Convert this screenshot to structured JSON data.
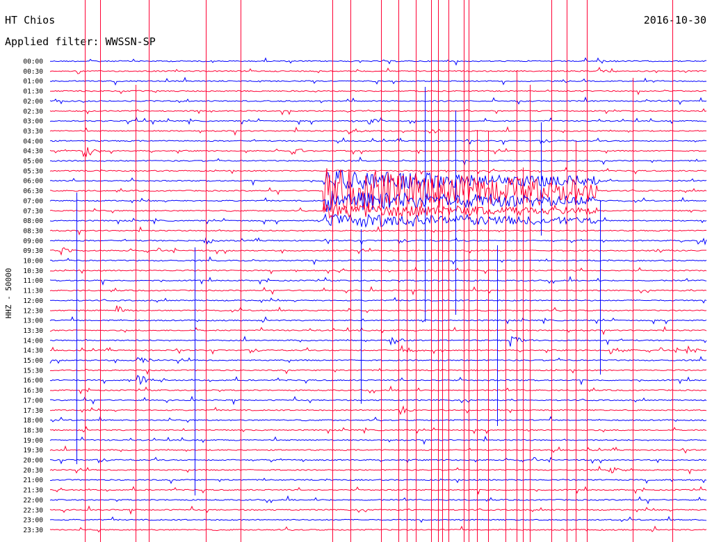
{
  "header": {
    "station": "HT Chios",
    "date": "2016-10-30",
    "filter_label": "Applied filter: WWSSN-SP"
  },
  "colors": {
    "even_trace": "#0000ff",
    "odd_trace": "#ff0033",
    "text": "#000000"
  },
  "chart_data": {
    "type": "line",
    "title": "HT Chios 2016-10-30",
    "subtitle": "Applied filter: WWSSN-SP",
    "ylabel": "HHZ - 50000",
    "xlabel": "",
    "trace_minutes": 30,
    "grid": false,
    "row_labels": [
      "00:00",
      "00:30",
      "01:00",
      "01:30",
      "02:00",
      "02:30",
      "03:00",
      "03:30",
      "04:00",
      "04:30",
      "05:00",
      "05:30",
      "06:00",
      "06:30",
      "07:00",
      "07:30",
      "08:00",
      "08:30",
      "09:00",
      "09:30",
      "10:00",
      "10:30",
      "11:00",
      "11:30",
      "12:00",
      "12:30",
      "13:00",
      "13:30",
      "14:00",
      "14:30",
      "15:00",
      "15:30",
      "16:00",
      "16:30",
      "17:00",
      "17:30",
      "18:00",
      "18:30",
      "19:00",
      "19:30",
      "20:00",
      "20:30",
      "21:00",
      "21:30",
      "22:00",
      "22:30",
      "23:00",
      "23:30"
    ],
    "event_minute": [
      {
        "row": 9,
        "minute": 1.5,
        "amp": 2.2
      },
      {
        "row": 7,
        "minute": 13.5,
        "amp": 1.2
      },
      {
        "row": 9,
        "minute": 11.0,
        "amp": 1.1
      },
      {
        "row": 18,
        "minute": 7.0,
        "amp": 1.0
      },
      {
        "row": 19,
        "minute": 0.5,
        "amp": 1.0
      },
      {
        "row": 19,
        "minute": 27.5,
        "amp": 1.0
      },
      {
        "row": 18,
        "minute": 29.5,
        "amp": 1.2
      },
      {
        "row": 25,
        "minute": 3.0,
        "amp": 1.2
      },
      {
        "row": 28,
        "minute": 15.5,
        "amp": 1.4
      },
      {
        "row": 28,
        "minute": 21.0,
        "amp": 1.2
      },
      {
        "row": 29,
        "minute": 16.0,
        "amp": 1.3
      },
      {
        "row": 29,
        "minute": 25.5,
        "amp": 1.3
      },
      {
        "row": 29,
        "minute": 29.0,
        "amp": 1.4
      },
      {
        "row": 30,
        "minute": 4.0,
        "amp": 1.0
      },
      {
        "row": 32,
        "minute": 4.0,
        "amp": 1.5
      },
      {
        "row": 35,
        "minute": 16.0,
        "amp": 1.2
      },
      {
        "row": 41,
        "minute": 25.5,
        "amp": 1.0
      },
      {
        "row": 6,
        "minute": 14.5,
        "amp": 0.8
      },
      {
        "row": 7,
        "minute": 17.3,
        "amp": 1.0
      },
      {
        "row": 0,
        "minute": 25.0,
        "amp": 0.6
      },
      {
        "row": 1,
        "minute": 25.0,
        "amp": 0.8
      },
      {
        "row": 12,
        "minute": 25.0,
        "amp": 0.6
      }
    ],
    "event_burst": {
      "start_row": 12,
      "end_row": 16,
      "start_minute": 12.5,
      "end_minute": 25.0,
      "amp": 2.5
    },
    "spike_minutes": [
      1.2,
      1.6,
      2.3,
      3.9,
      4.5,
      6.6,
      7.1,
      8.7,
      12.9,
      13.7,
      14.2,
      15.1,
      15.9,
      16.3,
      16.7,
      17.1,
      17.4,
      17.7,
      17.9,
      18.2,
      18.5,
      18.9,
      19.1,
      19.5,
      20.0,
      20.4,
      20.8,
      21.3,
      21.6,
      21.9,
      22.4,
      22.9,
      23.6,
      24.0,
      24.5,
      25.1,
      26.6,
      28.4
    ]
  }
}
